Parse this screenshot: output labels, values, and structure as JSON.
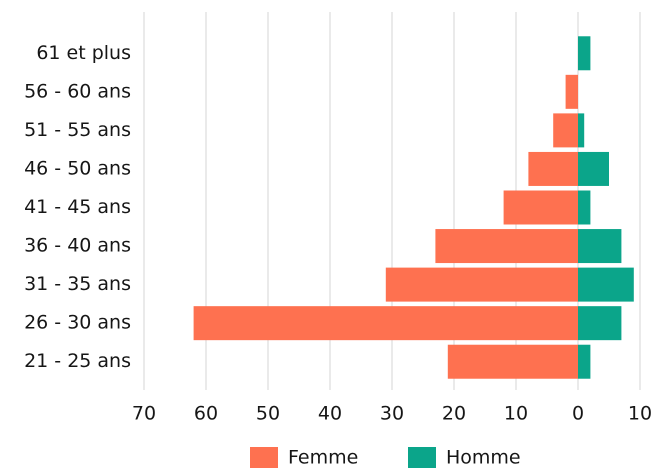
{
  "chart_data": {
    "type": "bar",
    "orientation": "horizontal",
    "categories": [
      "61 et plus",
      "56 - 60 ans",
      "51 - 55 ans",
      "46 - 50 ans",
      "41 - 45 ans",
      "36 - 40 ans",
      "31 - 35 ans",
      "26 - 30 ans",
      "21 - 25 ans"
    ],
    "series": [
      {
        "name": "Femme",
        "color": "#fe7150",
        "values": [
          0,
          -2,
          -4,
          -8,
          -12,
          -23,
          -31,
          -62,
          -21
        ]
      },
      {
        "name": "Homme",
        "color": "#0ba58a",
        "values": [
          2,
          0,
          1,
          5,
          2,
          7,
          9,
          7,
          2
        ]
      }
    ],
    "xlim": [
      -70,
      10
    ],
    "xticks": [
      {
        "value": -70,
        "label": "70"
      },
      {
        "value": -60,
        "label": "60"
      },
      {
        "value": -50,
        "label": "50"
      },
      {
        "value": -40,
        "label": "40"
      },
      {
        "value": -30,
        "label": "30"
      },
      {
        "value": -20,
        "label": "20"
      },
      {
        "value": -10,
        "label": "10"
      },
      0,
      10
    ],
    "grid": true,
    "legend": "bottom"
  }
}
